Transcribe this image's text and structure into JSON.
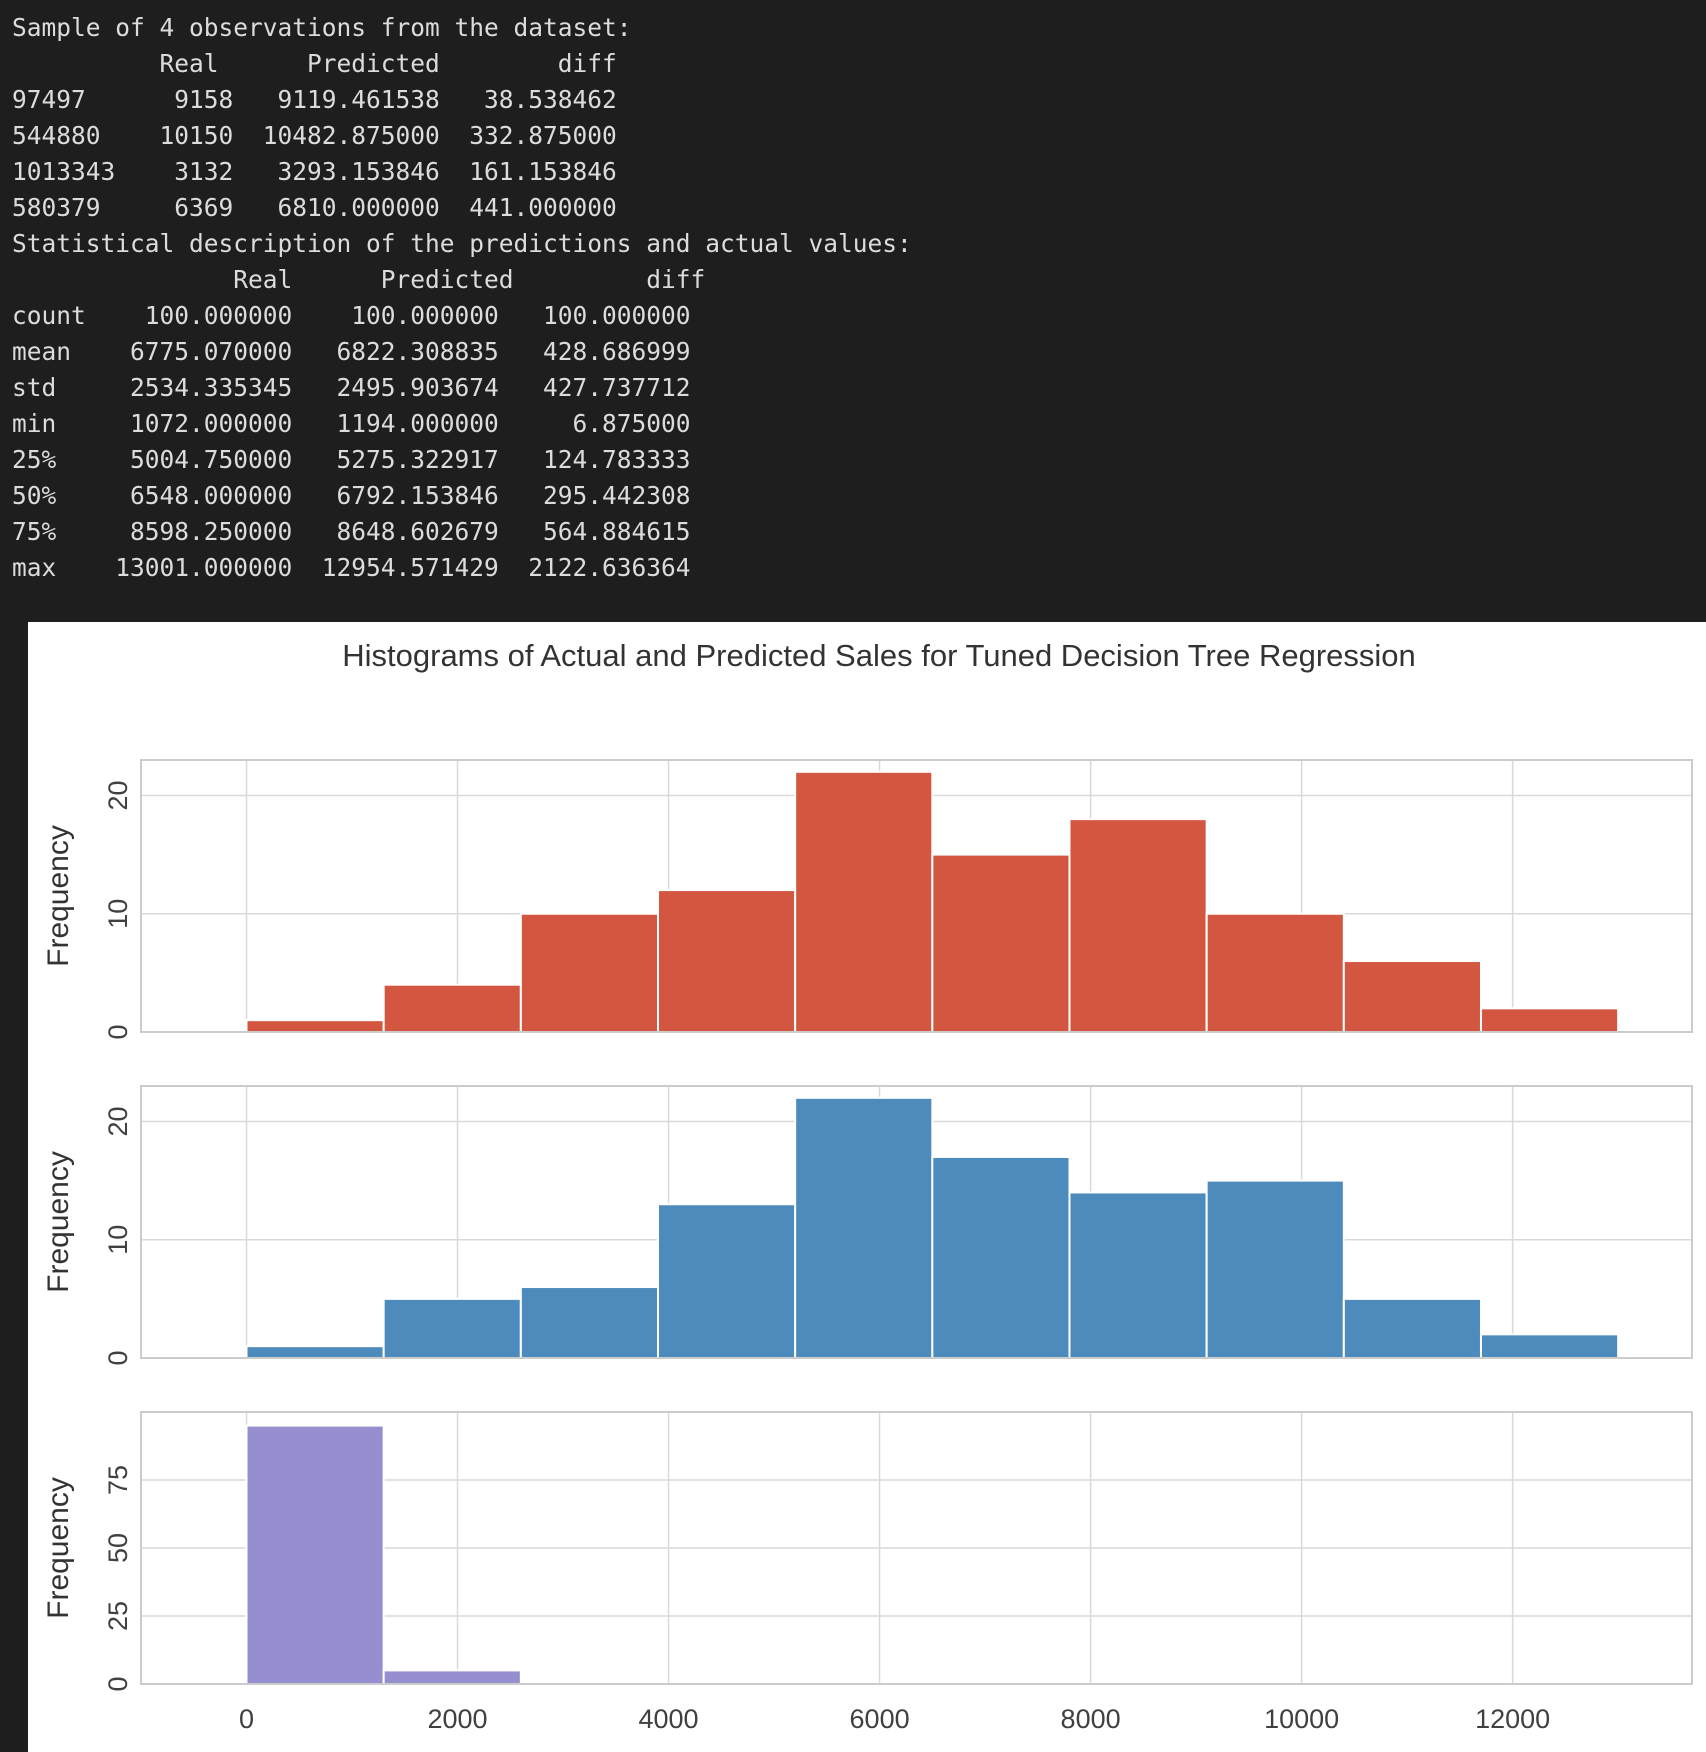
{
  "console": {
    "lines": [
      "Sample of 4 observations from the dataset:",
      "          Real      Predicted        diff",
      "97497      9158   9119.461538   38.538462",
      "544880    10150  10482.875000  332.875000",
      "1013343    3132   3293.153846  161.153846",
      "580379     6369   6810.000000  441.000000",
      "Statistical description of the predictions and actual values:",
      "               Real      Predicted         diff",
      "count    100.000000    100.000000   100.000000",
      "mean    6775.070000   6822.308835   428.686999",
      "std     2534.335345   2495.903674   427.737712",
      "min     1072.000000   1194.000000     6.875000",
      "25%     5004.750000   5275.322917   124.783333",
      "50%     6548.000000   6792.153846   295.442308",
      "75%     8598.250000   8648.602679   564.884615",
      "max    13001.000000  12954.571429  2122.636364"
    ]
  },
  "chart_data": {
    "type": "bar",
    "title": "Histograms of Actual and Predicted Sales for Tuned Decision Tree Regression",
    "xlabel": "",
    "xlim": [
      -1000,
      13700
    ],
    "x_ticks": [
      "0",
      "2000",
      "4000",
      "6000",
      "8000",
      "10000",
      "12000"
    ],
    "grid": true,
    "panels": [
      {
        "ylabel": "Frequency",
        "color": "#d35640",
        "ylim": [
          0,
          23
        ],
        "y_ticks": [
          "0",
          "10",
          "20"
        ],
        "bin_edges": [
          0,
          1300,
          2600,
          3900,
          5200,
          6500,
          7800,
          9100,
          10400,
          11700,
          13000
        ],
        "values": [
          1,
          4,
          10,
          12,
          22,
          15,
          18,
          10,
          6,
          2
        ]
      },
      {
        "ylabel": "Frequency",
        "color": "#4c8bbb",
        "ylim": [
          0,
          23
        ],
        "y_ticks": [
          "0",
          "10",
          "20"
        ],
        "bin_edges": [
          0,
          1300,
          2600,
          3900,
          5200,
          6500,
          7800,
          9100,
          10400,
          11700,
          13000
        ],
        "values": [
          1,
          5,
          6,
          13,
          22,
          17,
          14,
          15,
          5,
          2
        ]
      },
      {
        "ylabel": "Frequency",
        "color": "#968fcf",
        "ylim": [
          0,
          100
        ],
        "y_ticks": [
          "0",
          "25",
          "50",
          "75"
        ],
        "bin_edges": [
          0,
          1300,
          2600
        ],
        "values": [
          95,
          5
        ]
      }
    ]
  }
}
